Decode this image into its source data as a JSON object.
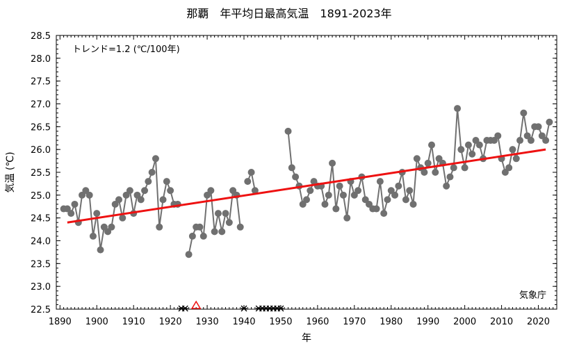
{
  "chart_data": {
    "type": "line",
    "title": "那覇　年平均日最高気温　1891-2023年",
    "xlabel": "年",
    "ylabel": "気温 (℃)",
    "trend_label": "トレンド=1.2 (℃/100年)",
    "agency_label": "気象庁",
    "xlim": [
      1889,
      2025
    ],
    "ylim": [
      22.5,
      28.5
    ],
    "x_ticks": [
      1890,
      1900,
      1910,
      1920,
      1930,
      1940,
      1950,
      1960,
      1970,
      1980,
      1990,
      2000,
      2010,
      2020
    ],
    "y_ticks": [
      22.5,
      23.0,
      23.5,
      24.0,
      24.5,
      25.0,
      25.5,
      26.0,
      26.5,
      27.0,
      27.5,
      28.0,
      28.5
    ],
    "grid": false,
    "series": [
      {
        "color": "#707070",
        "segments": [
          [
            [
              1891,
              24.7
            ],
            [
              1892,
              24.7
            ],
            [
              1893,
              24.6
            ],
            [
              1894,
              24.8
            ],
            [
              1895,
              24.4
            ],
            [
              1896,
              25.0
            ],
            [
              1897,
              25.1
            ],
            [
              1898,
              25.0
            ],
            [
              1899,
              24.1
            ],
            [
              1900,
              24.6
            ],
            [
              1901,
              23.8
            ],
            [
              1902,
              24.3
            ],
            [
              1903,
              24.2
            ],
            [
              1904,
              24.3
            ],
            [
              1905,
              24.8
            ],
            [
              1906,
              24.9
            ],
            [
              1907,
              24.5
            ],
            [
              1908,
              25.0
            ],
            [
              1909,
              25.1
            ],
            [
              1910,
              24.6
            ],
            [
              1911,
              25.0
            ],
            [
              1912,
              24.9
            ],
            [
              1913,
              25.1
            ],
            [
              1914,
              25.3
            ],
            [
              1915,
              25.5
            ],
            [
              1916,
              25.8
            ],
            [
              1917,
              24.3
            ],
            [
              1918,
              24.9
            ],
            [
              1919,
              25.3
            ],
            [
              1920,
              25.1
            ],
            [
              1921,
              24.8
            ],
            [
              1922,
              24.8
            ]
          ],
          [
            [
              1925,
              23.7
            ],
            [
              1926,
              24.1
            ],
            [
              1927,
              24.3
            ],
            [
              1928,
              24.3
            ],
            [
              1929,
              24.1
            ],
            [
              1930,
              25.0
            ],
            [
              1931,
              25.1
            ],
            [
              1932,
              24.2
            ],
            [
              1933,
              24.6
            ],
            [
              1934,
              24.2
            ],
            [
              1935,
              24.6
            ],
            [
              1936,
              24.4
            ],
            [
              1937,
              25.1
            ],
            [
              1938,
              25.0
            ],
            [
              1939,
              24.3
            ]
          ],
          [
            [
              1941,
              25.3
            ],
            [
              1942,
              25.5
            ],
            [
              1943,
              25.1
            ]
          ],
          [
            [
              1952,
              26.4
            ],
            [
              1953,
              25.6
            ],
            [
              1954,
              25.4
            ],
            [
              1955,
              25.2
            ],
            [
              1956,
              24.8
            ],
            [
              1957,
              24.9
            ],
            [
              1958,
              25.1
            ],
            [
              1959,
              25.3
            ],
            [
              1960,
              25.2
            ],
            [
              1961,
              25.2
            ],
            [
              1962,
              24.8
            ],
            [
              1963,
              25.0
            ],
            [
              1964,
              25.7
            ],
            [
              1965,
              24.7
            ],
            [
              1966,
              25.2
            ],
            [
              1967,
              25.0
            ],
            [
              1968,
              24.5
            ],
            [
              1969,
              25.3
            ],
            [
              1970,
              25.0
            ],
            [
              1971,
              25.1
            ],
            [
              1972,
              25.4
            ],
            [
              1973,
              24.9
            ],
            [
              1974,
              24.8
            ],
            [
              1975,
              24.7
            ],
            [
              1976,
              24.7
            ],
            [
              1977,
              25.3
            ],
            [
              1978,
              24.6
            ],
            [
              1979,
              24.9
            ],
            [
              1980,
              25.1
            ],
            [
              1981,
              25.0
            ],
            [
              1982,
              25.2
            ],
            [
              1983,
              25.5
            ],
            [
              1984,
              24.9
            ],
            [
              1985,
              25.1
            ],
            [
              1986,
              24.8
            ],
            [
              1987,
              25.8
            ],
            [
              1988,
              25.6
            ],
            [
              1989,
              25.5
            ],
            [
              1990,
              25.7
            ],
            [
              1991,
              26.1
            ],
            [
              1992,
              25.5
            ],
            [
              1993,
              25.8
            ],
            [
              1994,
              25.7
            ],
            [
              1995,
              25.2
            ],
            [
              1996,
              25.4
            ],
            [
              1997,
              25.6
            ],
            [
              1998,
              26.9
            ],
            [
              1999,
              26.0
            ],
            [
              2000,
              25.6
            ],
            [
              2001,
              26.1
            ],
            [
              2002,
              25.9
            ],
            [
              2003,
              26.2
            ],
            [
              2004,
              26.1
            ],
            [
              2005,
              25.8
            ],
            [
              2006,
              26.2
            ],
            [
              2007,
              26.2
            ],
            [
              2008,
              26.2
            ],
            [
              2009,
              26.3
            ],
            [
              2010,
              25.8
            ],
            [
              2011,
              25.5
            ],
            [
              2012,
              25.6
            ],
            [
              2013,
              26.0
            ],
            [
              2014,
              25.8
            ],
            [
              2015,
              26.2
            ],
            [
              2016,
              26.8
            ],
            [
              2017,
              26.3
            ],
            [
              2018,
              26.2
            ],
            [
              2019,
              26.5
            ],
            [
              2020,
              26.5
            ],
            [
              2021,
              26.3
            ],
            [
              2022,
              26.2
            ],
            [
              2023,
              26.6
            ]
          ]
        ]
      }
    ],
    "trend_line": {
      "color": "#ee1111",
      "x": [
        1892,
        2022
      ],
      "y": [
        24.4,
        26.0
      ]
    },
    "missing_years": [
      1923,
      1924,
      1940,
      1944,
      1945,
      1946,
      1947,
      1948,
      1949,
      1950
    ],
    "relocation_marker": {
      "year": 1927,
      "color": "#ee1111"
    }
  }
}
